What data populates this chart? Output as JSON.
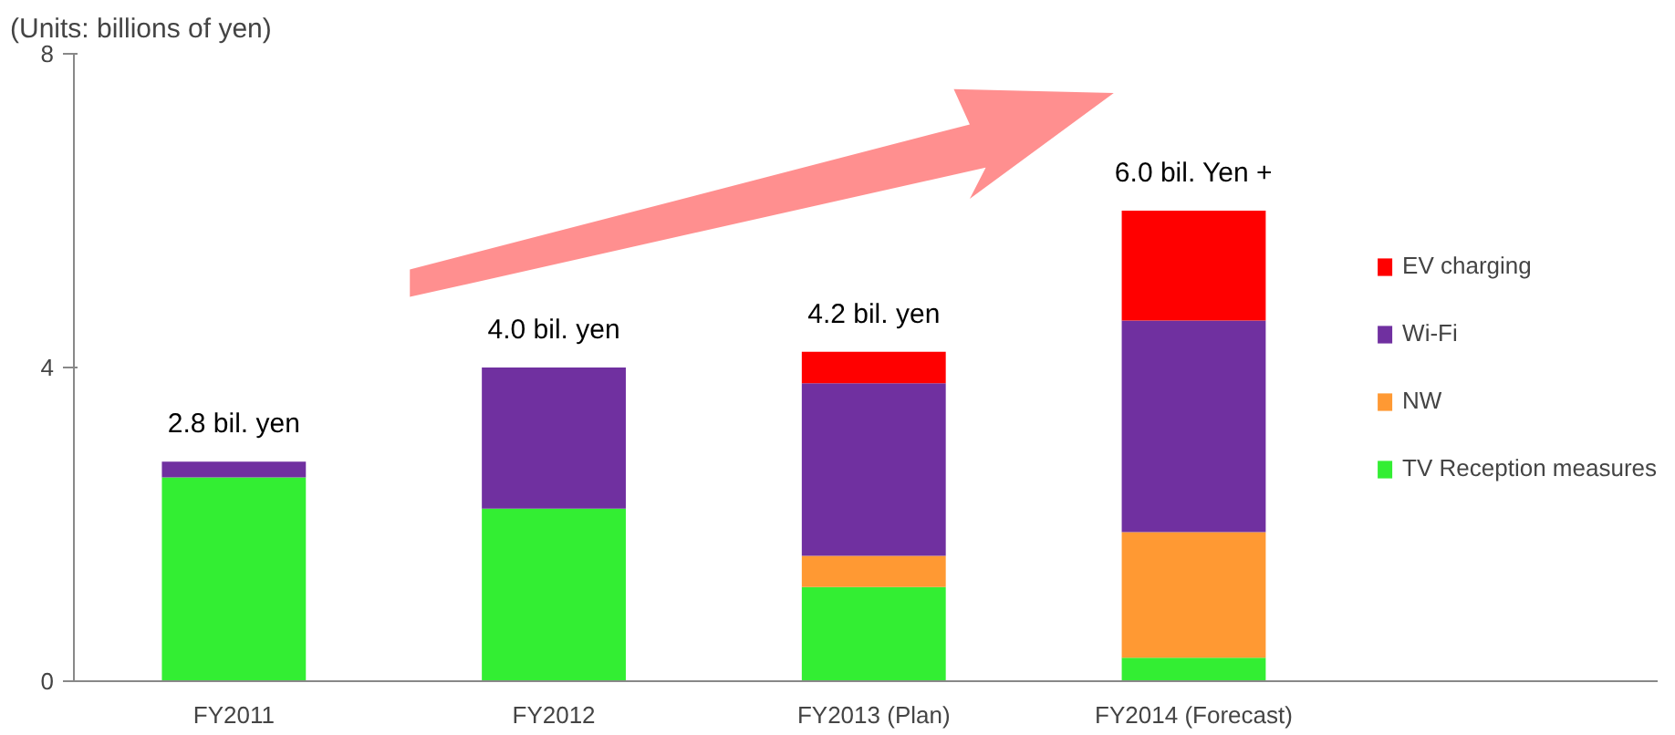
{
  "chart_data": {
    "type": "bar",
    "stacked": true,
    "ylabel": "(Units: billions of yen)",
    "categories": [
      "FY2011",
      "FY2012",
      "FY2013 (Plan)",
      "FY2014 (Forecast)"
    ],
    "series": [
      {
        "name": "TV Reception measures",
        "color": "#33ee33",
        "values": [
          2.6,
          2.2,
          1.2,
          0.3
        ]
      },
      {
        "name": "NW",
        "color": "#ff9933",
        "values": [
          null,
          null,
          0.4,
          1.6
        ]
      },
      {
        "name": "Wi-Fi",
        "color": "#7030a0",
        "values": [
          0.2,
          1.8,
          2.2,
          2.7
        ]
      },
      {
        "name": "EV charging",
        "color": "#ff0000",
        "values": [
          null,
          null,
          0.4,
          1.4
        ]
      }
    ],
    "totals": [
      "2.8 bil. yen",
      "4.0 bil. yen",
      "4.2 bil. yen",
      "6.0 bil. Yen +"
    ],
    "ylim": [
      0,
      8
    ],
    "yticks": [
      0,
      4,
      8
    ],
    "grid": false,
    "legend": "right"
  }
}
